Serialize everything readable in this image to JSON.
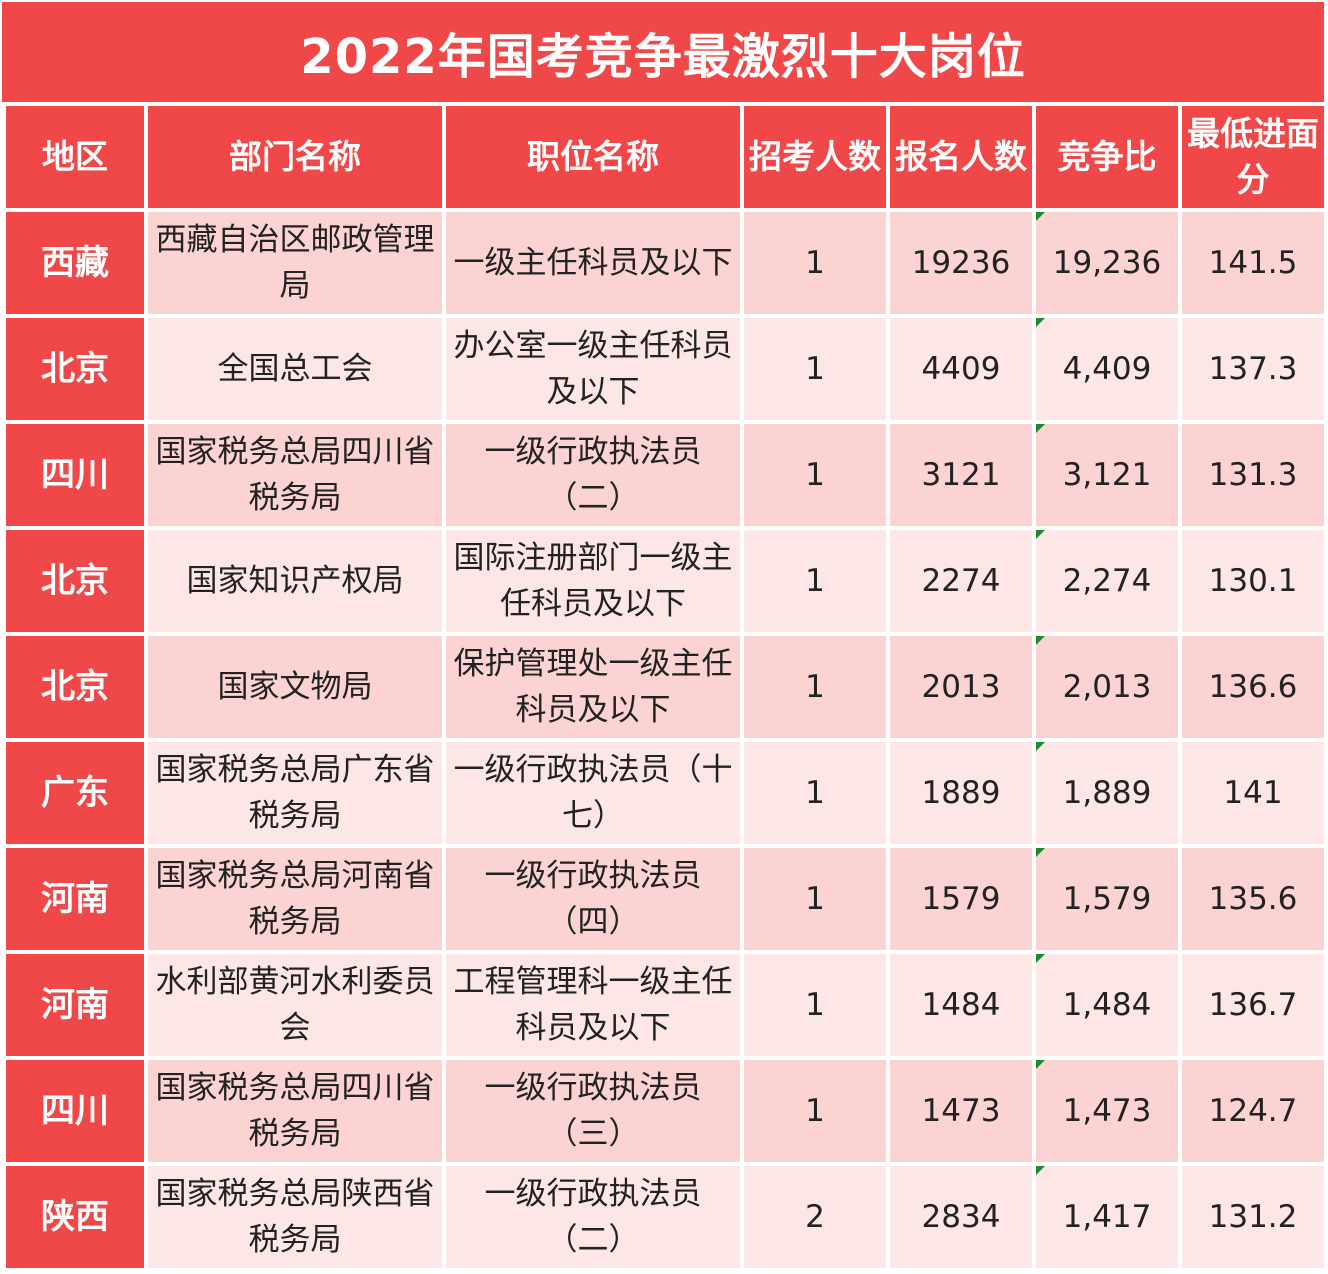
{
  "title": "2022年国考竞争最激烈十大岗位",
  "columns": [
    "地区",
    "部门名称",
    "职位名称",
    "招考人数",
    "报名人数",
    "竞争比",
    "最低进面分"
  ],
  "rows": [
    {
      "region": "西藏",
      "department": "西藏自治区邮政管理局",
      "position": "一级主任科员及以下",
      "quota": "1",
      "applicants": "19236",
      "ratio": "19,236",
      "min_score": "141.5"
    },
    {
      "region": "北京",
      "department": "全国总工会",
      "position": "办公室一级主任科员及以下",
      "quota": "1",
      "applicants": "4409",
      "ratio": "4,409",
      "min_score": "137.3"
    },
    {
      "region": "四川",
      "department": "国家税务总局四川省税务局",
      "position": "一级行政执法员（二）",
      "quota": "1",
      "applicants": "3121",
      "ratio": "3,121",
      "min_score": "131.3"
    },
    {
      "region": "北京",
      "department": "国家知识产权局",
      "position": "国际注册部门一级主任科员及以下",
      "quota": "1",
      "applicants": "2274",
      "ratio": "2,274",
      "min_score": "130.1"
    },
    {
      "region": "北京",
      "department": "国家文物局",
      "position": "保护管理处一级主任科员及以下",
      "quota": "1",
      "applicants": "2013",
      "ratio": "2,013",
      "min_score": "136.6"
    },
    {
      "region": "广东",
      "department": "国家税务总局广东省税务局",
      "position": "一级行政执法员（十七）",
      "quota": "1",
      "applicants": "1889",
      "ratio": "1,889",
      "min_score": "141"
    },
    {
      "region": "河南",
      "department": "国家税务总局河南省税务局",
      "position": "一级行政执法员（四）",
      "quota": "1",
      "applicants": "1579",
      "ratio": "1,579",
      "min_score": "135.6"
    },
    {
      "region": "河南",
      "department": "水利部黄河水利委员会",
      "position": "工程管理科一级主任科员及以下",
      "quota": "1",
      "applicants": "1484",
      "ratio": "1,484",
      "min_score": "136.7"
    },
    {
      "region": "四川",
      "department": "国家税务总局四川省税务局",
      "position": "一级行政执法员（三）",
      "quota": "1",
      "applicants": "1473",
      "ratio": "1,473",
      "min_score": "124.7"
    },
    {
      "region": "陕西",
      "department": "国家税务总局陕西省税务局",
      "position": "一级行政执法员（二）",
      "quota": "2",
      "applicants": "2834",
      "ratio": "1,417",
      "min_score": "131.2"
    }
  ],
  "colors": {
    "header": "#f04848",
    "row_dark": "#fbd3d3",
    "row_light": "#fde6e6",
    "marker": "#1e8a2e"
  }
}
